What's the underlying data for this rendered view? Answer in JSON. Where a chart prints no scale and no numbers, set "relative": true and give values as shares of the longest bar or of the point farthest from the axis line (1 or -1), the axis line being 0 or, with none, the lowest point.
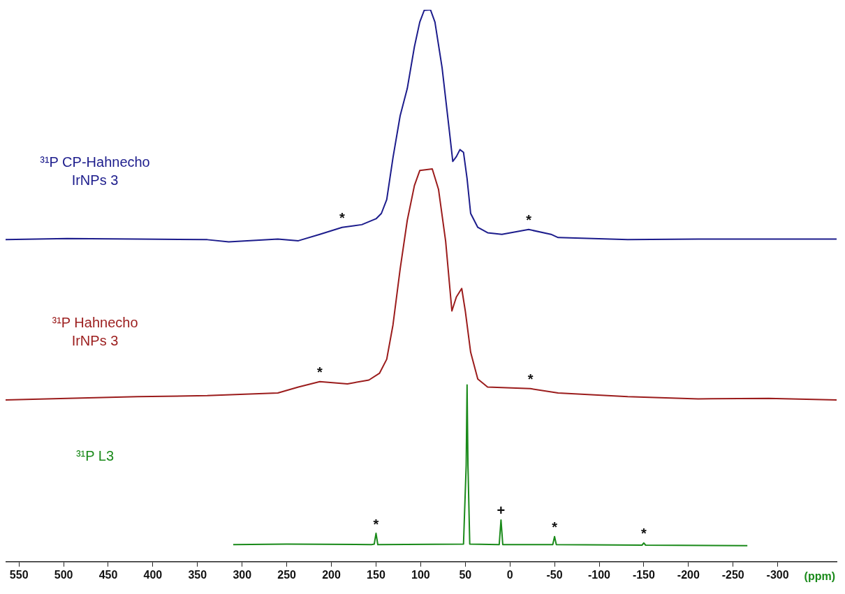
{
  "chart_data": {
    "type": "line",
    "relative": true,
    "xlabel": "(ppm)",
    "xlim": [
      565,
      -366
    ],
    "xticks": [
      550,
      500,
      450,
      400,
      350,
      300,
      250,
      200,
      150,
      100,
      50,
      0,
      -50,
      -100,
      -150,
      -200,
      -250,
      -300
    ],
    "tick_labels": "x",
    "grid": false,
    "legend": false,
    "marker": "none",
    "line_style": "solid",
    "series": [
      {
        "name": "³¹P CP-Hahnecho IrNPs 3",
        "color": "#1c1c8c",
        "x": [
          565,
          496,
          417,
          339,
          315,
          260,
          237,
          213,
          188,
          166,
          150,
          144,
          138,
          131,
          123,
          115,
          107,
          101,
          96,
          89,
          84,
          76,
          68,
          64,
          60,
          56,
          52,
          48,
          44,
          36,
          25,
          9,
          -21,
          -46,
          -54,
          -132,
          -211,
          -290,
          -366
        ],
        "values": [
          0.571,
          0.573,
          0.572,
          0.571,
          0.567,
          0.572,
          0.569,
          0.581,
          0.594,
          0.599,
          0.61,
          0.62,
          0.646,
          0.724,
          0.802,
          0.853,
          0.931,
          0.977,
          0.999,
          1.0,
          0.977,
          0.892,
          0.776,
          0.717,
          0.726,
          0.739,
          0.734,
          0.685,
          0.62,
          0.594,
          0.584,
          0.581,
          0.59,
          0.581,
          0.575,
          0.571,
          0.572,
          0.572,
          0.572
        ]
      },
      {
        "name": "³¹P Hahnecho IrNPs 3",
        "color": "#9b1c1c",
        "x": [
          565,
          496,
          417,
          339,
          260,
          237,
          213,
          182,
          158,
          146,
          138,
          131,
          123,
          115,
          107,
          101,
          87,
          80,
          72,
          65,
          60,
          54,
          50,
          44,
          36,
          25,
          -23,
          -54,
          -132,
          -211,
          -290,
          -366
        ],
        "values": [
          0.272,
          0.275,
          0.278,
          0.28,
          0.285,
          0.296,
          0.306,
          0.302,
          0.309,
          0.322,
          0.348,
          0.412,
          0.516,
          0.607,
          0.672,
          0.7,
          0.703,
          0.665,
          0.568,
          0.438,
          0.464,
          0.48,
          0.438,
          0.361,
          0.311,
          0.296,
          0.293,
          0.285,
          0.278,
          0.274,
          0.275,
          0.272
        ]
      },
      {
        "name": "³¹P L3",
        "color": "#1a8a1a",
        "x": [
          310,
          250,
          155,
          152,
          150,
          148,
          52,
          49,
          48,
          47,
          45,
          12,
          10,
          8,
          -48,
          -50,
          -52,
          -148,
          -150,
          -152,
          -266
        ],
        "values": [
          0.002,
          0.003,
          0.002,
          0.003,
          0.023,
          0.002,
          0.003,
          0.15,
          0.3,
          0.15,
          0.003,
          0.002,
          0.048,
          0.002,
          0.002,
          0.017,
          0.002,
          0.001,
          0.005,
          0.001,
          0
        ]
      }
    ],
    "annotations": [
      {
        "text": "*",
        "x": 188,
        "y": 0.594
      },
      {
        "text": "*",
        "x": -21,
        "y": 0.59
      },
      {
        "text": "*",
        "x": 213,
        "y": 0.306
      },
      {
        "text": "*",
        "x": -23,
        "y": 0.293
      },
      {
        "text": "*",
        "x": 150,
        "y": 0.023
      },
      {
        "text": "+",
        "x": 10,
        "y": 0.048
      },
      {
        "text": "*",
        "x": -50,
        "y": 0.017
      },
      {
        "text": "*",
        "x": -150,
        "y": 0.005
      }
    ]
  }
}
